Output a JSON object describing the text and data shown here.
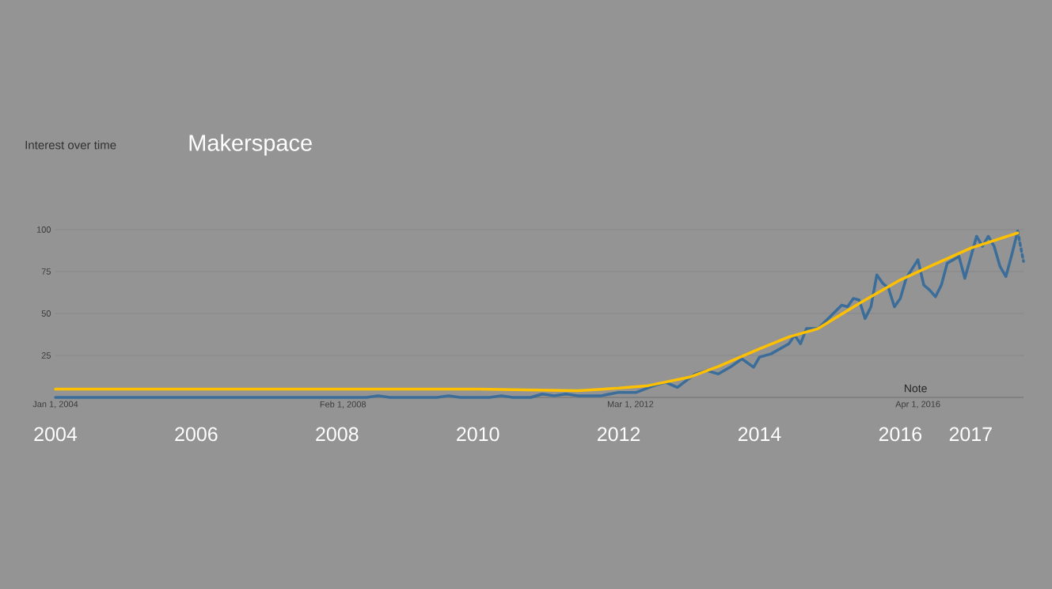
{
  "chart_data": {
    "type": "line",
    "title": "Makerspace",
    "subtitle": "Interest over time",
    "xlim": [
      "2004-01",
      "2017-10"
    ],
    "ylim": [
      0,
      100
    ],
    "yticks": [
      25,
      50,
      75,
      100
    ],
    "xticks": [
      {
        "value": "2004-01-01",
        "label": "Jan 1, 2004"
      },
      {
        "value": "2008-02-01",
        "label": "Feb 1, 2008"
      },
      {
        "value": "2012-03-01",
        "label": "Mar 1, 2012"
      },
      {
        "value": "2016-04-01",
        "label": "Apr 1, 2016"
      }
    ],
    "x2lim": [
      2004,
      2017.75
    ],
    "x2ticks": [
      2004,
      2006,
      2008,
      2010,
      2012,
      2014,
      2016,
      2017
    ],
    "grid": "y",
    "marker": "none",
    "annotations": [
      "Note"
    ],
    "series": [
      {
        "color": "#3a6d99",
        "line_style": "solid",
        "x": [
          "2004-01",
          "2008-06",
          "2008-08",
          "2008-10",
          "2009-06",
          "2009-08",
          "2009-10",
          "2010-03",
          "2010-05",
          "2010-07",
          "2010-10",
          "2010-12",
          "2011-02",
          "2011-04",
          "2011-06",
          "2011-10",
          "2012-01",
          "2012-04",
          "2012-07",
          "2012-09",
          "2012-11",
          "2013-02",
          "2013-04",
          "2013-06",
          "2013-08",
          "2013-10",
          "2013-12",
          "2014-01",
          "2014-03",
          "2014-06",
          "2014-07",
          "2014-08",
          "2014-09",
          "2014-11",
          "2015-01",
          "2015-03",
          "2015-04",
          "2015-05",
          "2015-06",
          "2015-07",
          "2015-08",
          "2015-09",
          "2015-10",
          "2015-11",
          "2015-12",
          "2016-01",
          "2016-02",
          "2016-04",
          "2016-05",
          "2016-06",
          "2016-07",
          "2016-08",
          "2016-09",
          "2016-11",
          "2016-12",
          "2017-02",
          "2017-03",
          "2017-04",
          "2017-05",
          "2017-06",
          "2017-07",
          "2017-08",
          "2017-09"
        ],
        "values": [
          0,
          0,
          1,
          0,
          0,
          1,
          0,
          0,
          1,
          0,
          0,
          2,
          1,
          2,
          1,
          1,
          3,
          3,
          7,
          9,
          6,
          14,
          16,
          14,
          18,
          23,
          18,
          24,
          26,
          32,
          37,
          32,
          41,
          41,
          48,
          55,
          54,
          59,
          58,
          47,
          54,
          73,
          68,
          65,
          54,
          59,
          71,
          82,
          67,
          64,
          60,
          67,
          80,
          84,
          71,
          96,
          90,
          96,
          90,
          78,
          72,
          85,
          99
        ]
      },
      {
        "color": "#3a6d99",
        "line_style": "dotted",
        "x": [
          "2017-09",
          "2017-10"
        ],
        "values": [
          99,
          81
        ]
      },
      {
        "color": "#ffc000",
        "line_style": "solid",
        "x": [
          "2004-01",
          "2010-01",
          "2011-06",
          "2012-01",
          "2012-06",
          "2013-01",
          "2013-06",
          "2014-01",
          "2014-06",
          "2014-11",
          "2015-06",
          "2016-01",
          "2016-06",
          "2017-01",
          "2017-09"
        ],
        "values": [
          5,
          5,
          4,
          5.5,
          7,
          12,
          18.5,
          29,
          36,
          41,
          56,
          70,
          78,
          89,
          98
        ]
      }
    ]
  }
}
